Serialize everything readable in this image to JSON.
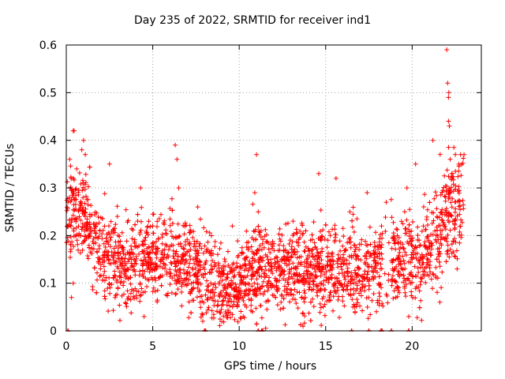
{
  "chart_data": {
    "type": "scatter",
    "title": "Day 235 of 2022, SRMTID for receiver ind1",
    "xlabel": "GPS time / hours",
    "ylabel": "SRMTID / TECUs",
    "xlim": [
      0,
      24
    ],
    "ylim": [
      0,
      0.6
    ],
    "xticks": [
      0,
      5,
      10,
      15,
      20
    ],
    "yticks": [
      0,
      0.1,
      0.2,
      0.3,
      0.4,
      0.5,
      0.6
    ],
    "grid": true,
    "marker": "+",
    "color": "#ff0000",
    "trend": {
      "x": [
        0,
        0.5,
        1,
        1.5,
        2,
        3,
        4,
        5,
        6,
        7,
        8,
        8.5,
        9,
        9.5,
        10,
        11,
        12,
        13,
        14,
        15,
        16,
        17,
        18,
        18.5,
        19,
        20,
        20.5,
        21,
        21.5,
        22,
        22.5,
        23
      ],
      "y": [
        0.23,
        0.25,
        0.24,
        0.2,
        0.17,
        0.14,
        0.14,
        0.16,
        0.15,
        0.14,
        0.13,
        0.1,
        0.09,
        0.09,
        0.1,
        0.14,
        0.12,
        0.13,
        0.13,
        0.13,
        0.13,
        0.13,
        0.14,
        0.14,
        0.15,
        0.15,
        0.13,
        0.18,
        0.21,
        0.26,
        0.27,
        0.26
      ]
    },
    "spread": 0.045,
    "points": [
      [
        0.1,
        0.27
      ],
      [
        0.2,
        0.36
      ],
      [
        0.4,
        0.42
      ],
      [
        0.45,
        0.42
      ],
      [
        0.9,
        0.38
      ],
      [
        1.0,
        0.4
      ],
      [
        1.1,
        0.37
      ],
      [
        0.6,
        0.34
      ],
      [
        0.3,
        0.07
      ],
      [
        0.4,
        0.1
      ],
      [
        2.5,
        0.35
      ],
      [
        4.3,
        0.3
      ],
      [
        4.5,
        0.03
      ],
      [
        6.3,
        0.39
      ],
      [
        6.4,
        0.36
      ],
      [
        6.5,
        0.3
      ],
      [
        7.6,
        0.26
      ],
      [
        9.6,
        0.22
      ],
      [
        10.9,
        0.29
      ],
      [
        11.0,
        0.37
      ],
      [
        11.1,
        0.25
      ],
      [
        14.6,
        0.33
      ],
      [
        15.6,
        0.32
      ],
      [
        16.4,
        0.25
      ],
      [
        16.7,
        0.04
      ],
      [
        17.4,
        0.29
      ],
      [
        18.5,
        0.27
      ],
      [
        19.7,
        0.3
      ],
      [
        19.8,
        0.03
      ],
      [
        20.2,
        0.35
      ],
      [
        21.2,
        0.4
      ],
      [
        21.6,
        0.06
      ],
      [
        22.0,
        0.59
      ],
      [
        22.05,
        0.52
      ],
      [
        22.1,
        0.49
      ],
      [
        22.12,
        0.5
      ],
      [
        22.1,
        0.44
      ],
      [
        22.15,
        0.43
      ],
      [
        22.2,
        0.36
      ],
      [
        22.3,
        0.33
      ],
      [
        22.5,
        0.37
      ],
      [
        22.7,
        0.35
      ],
      [
        22.8,
        0.37
      ],
      [
        23.0,
        0.37
      ],
      [
        22.6,
        0.13
      ]
    ],
    "zero_marks_x": [
      0.1,
      8.0,
      8.05,
      11.1,
      11.3,
      11.35,
      16.5,
      17.5,
      18.2,
      18.25,
      18.8,
      19.8
    ]
  }
}
